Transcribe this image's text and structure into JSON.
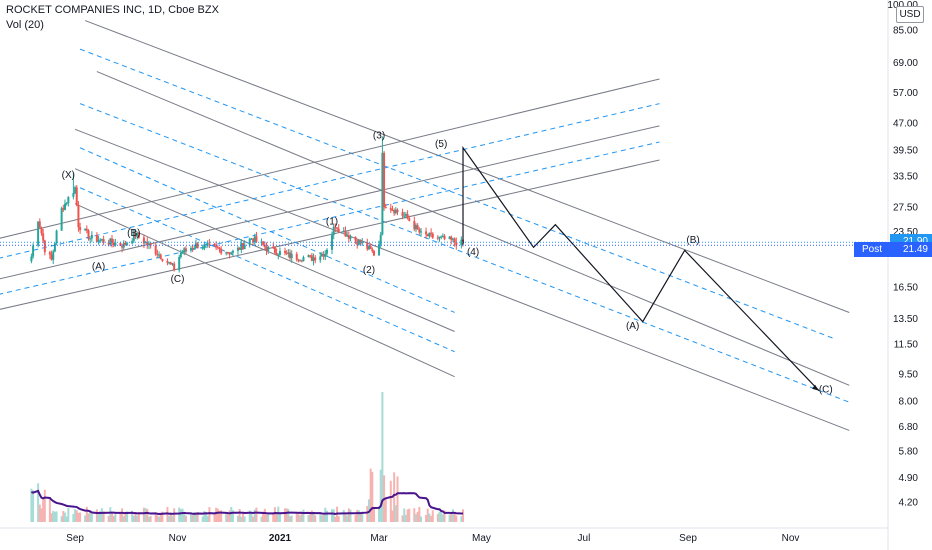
{
  "header": {
    "title": "ROCKET COMPANIES INC, 1D, Cboe BZX",
    "volume_label": "Vol (20)",
    "currency": "USD"
  },
  "price_labels": {
    "last": "21.90",
    "post_label": "Post",
    "post": "21.49"
  },
  "colors": {
    "up": "#26a69a",
    "down": "#ef5350",
    "dashed_channel": "#2196f3",
    "channel": "#787b86",
    "wave_path": "#131722",
    "volume_ma": "#4a148c",
    "price_tag": "#2196f3",
    "post_tag": "#2962ff"
  },
  "chart_data": {
    "type": "candlestick",
    "y_scale": "log",
    "ylim": [
      3.9,
      100
    ],
    "y_ticks": [
      "100.00",
      "85.00",
      "69.00",
      "57.00",
      "47.00",
      "39.50",
      "33.50",
      "27.50",
      "23.50",
      "16.50",
      "13.50",
      "11.50",
      "9.50",
      "8.00",
      "6.80",
      "5.80",
      "4.90",
      "4.20"
    ],
    "x_ticks": [
      "Sep",
      "Nov",
      "2021",
      "Mar",
      "May",
      "Jul",
      "Sep",
      "Nov"
    ],
    "x_tick_dates": [
      "2020-09-01",
      "2020-11-01",
      "2021-01-01",
      "2021-03-01",
      "2021-05-01",
      "2021-07-01",
      "2021-09-01",
      "2021-11-01"
    ],
    "xlim": [
      "2020-08-01",
      "2021-12-10"
    ],
    "price_anchors": [
      [
        "2020-08-06",
        20.0
      ],
      [
        "2020-08-10",
        25.5
      ],
      [
        "2020-08-14",
        21.0
      ],
      [
        "2020-08-18",
        19.5
      ],
      [
        "2020-08-24",
        27.0
      ],
      [
        "2020-08-28",
        29.0
      ],
      [
        "2020-09-01",
        31.0
      ],
      [
        "2020-09-03",
        24.5
      ],
      [
        "2020-09-10",
        22.5
      ],
      [
        "2020-09-20",
        22.0
      ],
      [
        "2020-09-30",
        21.5
      ],
      [
        "2020-10-07",
        23.0
      ],
      [
        "2020-10-20",
        20.5
      ],
      [
        "2020-10-30",
        18.5
      ],
      [
        "2020-11-03",
        20.5
      ],
      [
        "2020-11-12",
        21.5
      ],
      [
        "2020-11-25",
        21.0
      ],
      [
        "2020-12-05",
        20.5
      ],
      [
        "2020-12-15",
        22.5
      ],
      [
        "2020-12-25",
        21.0
      ],
      [
        "2021-01-08",
        20.0
      ],
      [
        "2021-01-20",
        19.8
      ],
      [
        "2021-01-28",
        20.5
      ],
      [
        "2021-02-03",
        24.5
      ],
      [
        "2021-02-10",
        23.0
      ],
      [
        "2021-02-20",
        21.5
      ],
      [
        "2021-02-28",
        20.0
      ],
      [
        "2021-03-02",
        23.5
      ],
      [
        "2021-03-03",
        38.0
      ],
      [
        "2021-03-04",
        28.0
      ],
      [
        "2021-03-10",
        27.0
      ],
      [
        "2021-03-18",
        25.5
      ],
      [
        "2021-03-26",
        23.0
      ],
      [
        "2021-04-05",
        22.5
      ],
      [
        "2021-04-15",
        22.0
      ],
      [
        "2021-04-20",
        21.7
      ]
    ],
    "candle_extremes": {
      "wave_3_high": 43.0,
      "wave_2_low": 20.5,
      "wave_C_low": 18.2,
      "wave_X_high": 34.0
    },
    "volume_spike": {
      "date": "2021-03-03",
      "level": "peak"
    },
    "post_price": 21.49,
    "last_price": 21.9,
    "wave_labels": [
      {
        "text": "(X)",
        "date": "2020-08-28",
        "price": 33.0
      },
      {
        "text": "(A)",
        "date": "2020-09-15",
        "price": 18.4
      },
      {
        "text": "(B)",
        "date": "2020-10-06",
        "price": 22.8
      },
      {
        "text": "(C)",
        "date": "2020-11-01",
        "price": 17.0
      },
      {
        "text": "(1)",
        "date": "2021-02-01",
        "price": 24.5
      },
      {
        "text": "(2)",
        "date": "2021-02-23",
        "price": 18.0
      },
      {
        "text": "(3)",
        "date": "2021-03-01",
        "price": 42.5
      },
      {
        "text": "(5)",
        "date": "2021-04-07",
        "price": 40.2
      },
      {
        "text": "(4)",
        "date": "2021-04-26",
        "price": 20.2
      },
      {
        "text": "(A)",
        "date": "2021-07-30",
        "price": 12.6
      },
      {
        "text": "(B)",
        "date": "2021-09-04",
        "price": 21.8
      },
      {
        "text": "(C)",
        "date": "2021-11-22",
        "price": 8.4
      }
    ],
    "wave_projection": [
      [
        "2021-04-20",
        21.6
      ],
      [
        "2021-04-20",
        40.0
      ],
      [
        "2021-06-01",
        21.2
      ],
      [
        "2021-06-14",
        24.5
      ],
      [
        "2021-08-05",
        13.2
      ],
      [
        "2021-08-30",
        20.8
      ],
      [
        "2021-11-18",
        8.5
      ]
    ],
    "channels": {
      "descending_solid": [
        {
          "start": [
            "2020-09-07",
            90.0
          ],
          "end": [
            "2021-12-06",
            14.0
          ]
        },
        {
          "start": [
            "2020-09-14",
            65.0
          ],
          "end": [
            "2021-12-06",
            8.8
          ]
        },
        {
          "start": [
            "2020-09-01",
            45.0
          ],
          "end": [
            "2021-12-06",
            6.6
          ]
        },
        {
          "start": [
            "2020-09-01",
            35.0
          ],
          "end": [
            "2021-04-15",
            12.4
          ]
        },
        {
          "start": [
            "2020-09-01",
            28.0
          ],
          "end": [
            "2021-04-15",
            9.3
          ]
        }
      ],
      "descending_dashed": [
        {
          "start": [
            "2020-09-04",
            75.0
          ],
          "end": [
            "2021-11-28",
            11.8
          ]
        },
        {
          "start": [
            "2020-09-04",
            53.0
          ],
          "end": [
            "2021-12-06",
            7.9
          ]
        },
        {
          "start": [
            "2020-09-04",
            40.0
          ],
          "end": [
            "2021-04-15",
            14.0
          ]
        },
        {
          "start": [
            "2020-09-04",
            31.0
          ],
          "end": [
            "2021-04-15",
            10.9
          ]
        }
      ],
      "ascending_solid": [
        {
          "start": [
            "2020-07-10",
            22.0
          ],
          "end": [
            "2021-08-15",
            62.0
          ]
        },
        {
          "start": [
            "2020-07-10",
            17.0
          ],
          "end": [
            "2021-08-15",
            46.0
          ]
        },
        {
          "start": [
            "2020-07-10",
            14.0
          ],
          "end": [
            "2021-08-15",
            37.0
          ]
        }
      ],
      "ascending_dashed": [
        {
          "start": [
            "2020-07-12",
            19.5
          ],
          "end": [
            "2021-08-15",
            53.0
          ]
        },
        {
          "start": [
            "2020-07-12",
            15.5
          ],
          "end": [
            "2021-08-15",
            41.5
          ]
        }
      ]
    },
    "horizontal_levels": [
      21.9,
      21.49
    ]
  }
}
